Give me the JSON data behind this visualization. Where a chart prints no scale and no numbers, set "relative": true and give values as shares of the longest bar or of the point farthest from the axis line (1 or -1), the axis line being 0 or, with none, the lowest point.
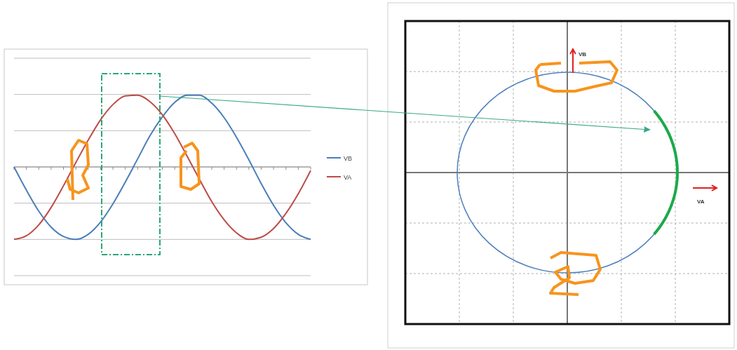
{
  "chart_data": [
    {
      "type": "line",
      "relative": true,
      "grid": "y",
      "legend": "right",
      "categories": [
        null,
        null,
        null,
        null,
        null,
        null,
        null,
        null,
        null,
        null,
        null,
        null,
        null,
        null,
        null,
        null,
        null,
        null,
        null,
        null,
        null,
        null,
        null,
        null,
        null
      ],
      "series": [
        {
          "name": "VB",
          "color": "#4a7ebb",
          "values": [
            0,
            -0.32,
            -0.61,
            -0.83,
            -0.96,
            -1,
            -0.93,
            -0.76,
            -0.51,
            -0.21,
            0.11,
            0.43,
            0.69,
            0.89,
            0.99,
            0.99,
            0.88,
            0.68,
            0.41,
            0.1,
            -0.23,
            -0.53,
            -0.77,
            -0.93,
            -1
          ]
        },
        {
          "name": "VA",
          "color": "#be4b48",
          "values": [
            -1,
            -0.95,
            -0.8,
            -0.56,
            -0.26,
            0.06,
            0.37,
            0.65,
            0.86,
            0.98,
            0.99,
            0.9,
            0.72,
            0.46,
            0.15,
            -0.17,
            -0.48,
            -0.73,
            -0.91,
            -1,
            -0.97,
            -0.85,
            -0.64,
            -0.37,
            -0.05
          ]
        }
      ]
    },
    {
      "type": "other",
      "xlabel": "VA",
      "ylabel": "VB"
    }
  ]
}
